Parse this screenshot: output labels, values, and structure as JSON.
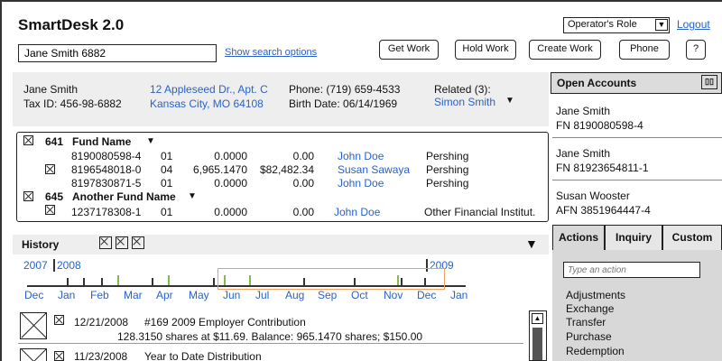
{
  "app": {
    "title": "SmartDesk 2.0",
    "role": "Operator's Role",
    "logout": "Logout"
  },
  "search": {
    "value": "Jane Smith 6882",
    "options_link": "Show search options"
  },
  "toolbar": {
    "get_work": "Get Work",
    "hold_work": "Hold Work",
    "create_work": "Create Work",
    "phone": "Phone",
    "help": "?"
  },
  "customer": {
    "name": "Jane Smith",
    "tax_id": "Tax ID: 456-98-6882",
    "address1": "12 Appleseed Dr., Apt. C",
    "address2": "Kansas City, MO 64108",
    "phone": "Phone: (719) 659-4533",
    "birth": "Birth Date: 06/14/1969",
    "related_label": "Related (3):",
    "related_name": "Simon Smith"
  },
  "funds": [
    {
      "code": "641",
      "name": "Fund Name",
      "rows": [
        {
          "acct": "8190080598-4",
          "type": "01",
          "shares": "0.0000",
          "value": "0.00",
          "rep": "John Doe",
          "firm": "Pershing"
        },
        {
          "acct": "8196548018-0",
          "type": "04",
          "shares": "6,965.1470",
          "value": "$82,482.34",
          "rep": "Susan Sawaya",
          "firm": "Pershing"
        },
        {
          "acct": "8197830871-5",
          "type": "01",
          "shares": "0.0000",
          "value": "0.00",
          "rep": "John Doe",
          "firm": "Pershing"
        }
      ]
    },
    {
      "code": "645",
      "name": "Another Fund Name",
      "rows": [
        {
          "acct": "1237178308-1",
          "type": "01",
          "shares": "0.0000",
          "value": "0.00",
          "rep": "John Doe",
          "firm": "Other Financial Institut."
        }
      ]
    }
  ],
  "history": {
    "title": "History",
    "years": [
      "2007",
      "2008",
      "2009"
    ],
    "months": [
      "Dec",
      "Jan",
      "Feb",
      "Mar",
      "Apr",
      "May",
      "Jun",
      "Jul",
      "Aug",
      "Sep",
      "Oct",
      "Nov",
      "Dec",
      "Jan"
    ],
    "items": [
      {
        "date": "12/21/2008",
        "title": "#169  2009 Employer Contribution",
        "detail": "128.3150 shares at $11.69. Balance: 965.1470 shares; $150.00"
      },
      {
        "date": "11/23/2008",
        "title": "Year to Date Distribution",
        "detail": ""
      }
    ]
  },
  "open_accounts": {
    "title": "Open Accounts",
    "items": [
      {
        "name": "Jane Smith",
        "num": "FN 8190080598-4"
      },
      {
        "name": "Jane Smith",
        "num": "FN 81923654811-1"
      },
      {
        "name": "Susan Wooster",
        "num": "AFN 3851964447-4"
      }
    ]
  },
  "actions": {
    "tabs": [
      "Actions",
      "Inquiry",
      "Custom"
    ],
    "placeholder": "Type an action",
    "items": [
      "Adjustments",
      "Exchange",
      "Transfer",
      "Purchase",
      "Redemption"
    ]
  }
}
